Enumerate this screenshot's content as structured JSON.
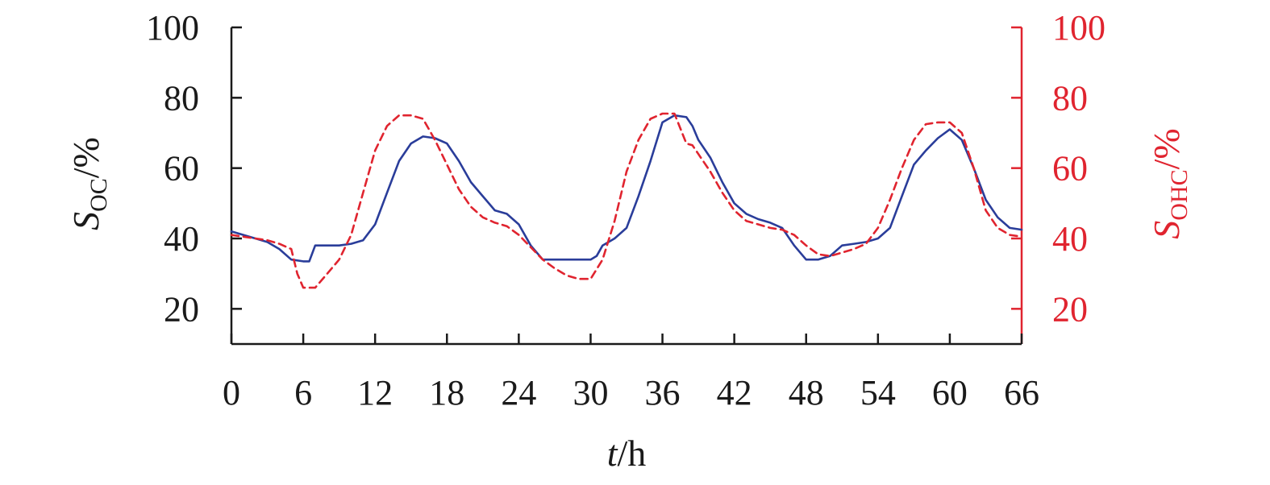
{
  "chart_data": {
    "type": "line",
    "x_axis": {
      "title_italic": "t",
      "title_unit": "/h",
      "ticks": [
        "0",
        "6",
        "12",
        "18",
        "24",
        "30",
        "36",
        "42",
        "48",
        "54",
        "60",
        "66"
      ],
      "range": [
        0,
        66
      ]
    },
    "y_left": {
      "title_main": "S",
      "title_sub": "OC",
      "title_unit": "/%",
      "ticks": [
        "20",
        "40",
        "60",
        "80",
        "100"
      ],
      "range": [
        10,
        100
      ],
      "color": "#1a1a1a"
    },
    "y_right": {
      "title_main": "S",
      "title_sub": "OHC",
      "title_unit": "/%",
      "ticks": [
        "20",
        "40",
        "60",
        "80",
        "100"
      ],
      "range": [
        10,
        100
      ],
      "color": "#e0242f"
    },
    "series": [
      {
        "axis": "left",
        "color": "#2a3d9a",
        "style": "solid",
        "x": [
          0,
          2,
          3,
          4,
          5,
          6,
          6.5,
          7,
          8,
          9,
          10,
          11,
          12,
          13,
          14,
          15,
          16,
          17,
          18,
          19,
          20,
          21,
          22,
          23,
          24,
          25,
          26,
          27,
          28,
          29,
          30,
          30.5,
          31,
          32,
          33,
          34,
          35,
          36,
          37,
          38,
          38.5,
          39,
          40,
          41,
          42,
          43,
          44,
          45,
          46,
          47,
          48,
          49,
          50,
          51,
          52,
          53,
          54,
          55,
          56,
          57,
          58,
          59,
          60,
          61,
          62,
          63,
          64,
          65,
          66
        ],
        "y": [
          42,
          40,
          39,
          37,
          34,
          33.5,
          33.5,
          38,
          38,
          38,
          38.5,
          39.5,
          44,
          53,
          62,
          67,
          69,
          68.5,
          67,
          62,
          56,
          52,
          48,
          47,
          44,
          38,
          34,
          34,
          34,
          34,
          34,
          35,
          38,
          40,
          43,
          52,
          62,
          73,
          75,
          74.5,
          72,
          68,
          63,
          56,
          50,
          47,
          45.5,
          44.5,
          43,
          38,
          34,
          34,
          35,
          38,
          38.5,
          39,
          40,
          43,
          52,
          61,
          65,
          68.5,
          71,
          68,
          60,
          51,
          46,
          43,
          42.5
        ]
      },
      {
        "axis": "right",
        "color": "#e0242f",
        "style": "dashed",
        "x": [
          0,
          2,
          3,
          4,
          5,
          5.5,
          6,
          7,
          8,
          9,
          10,
          11,
          12,
          13,
          14,
          15,
          16,
          17,
          18,
          19,
          20,
          21,
          22,
          23,
          24,
          25,
          26,
          27,
          28,
          29,
          30,
          31,
          32,
          33,
          34,
          35,
          36,
          37,
          38,
          38.5,
          39,
          40,
          41,
          42,
          43,
          44,
          45,
          46,
          47,
          48,
          49,
          50,
          51,
          52,
          53,
          54,
          55,
          56,
          57,
          58,
          59,
          60,
          61,
          62,
          63,
          64,
          65,
          66
        ],
        "y": [
          41,
          40,
          39.5,
          38.5,
          37,
          30,
          26,
          26,
          30,
          34,
          41,
          53,
          65,
          72,
          75,
          75,
          74,
          68,
          61,
          54,
          49,
          46,
          44.5,
          43.5,
          41,
          37.5,
          34,
          31.5,
          29.5,
          28.5,
          28.5,
          34,
          45,
          59,
          68,
          74,
          75.5,
          75.5,
          67,
          66.5,
          64,
          59,
          53,
          48,
          45,
          44,
          43,
          42.5,
          41,
          38,
          35.5,
          35,
          36,
          37,
          38.5,
          43,
          51,
          60,
          68,
          72.5,
          73,
          73,
          70,
          60,
          48,
          43,
          41,
          40.5
        ]
      }
    ]
  }
}
